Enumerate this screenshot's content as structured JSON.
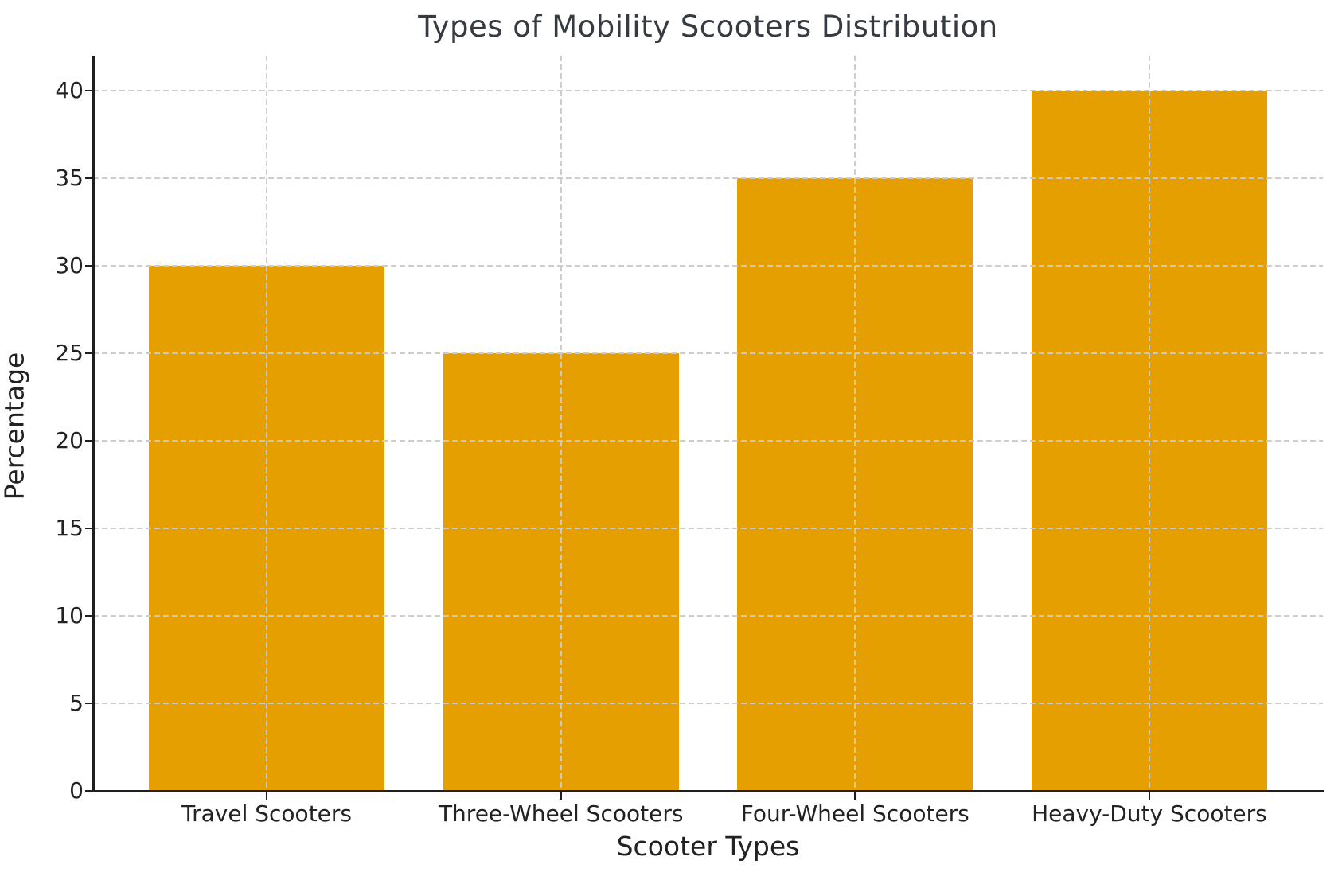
{
  "chart_data": {
    "type": "bar",
    "title": "Types of Mobility Scooters Distribution",
    "xlabel": "Scooter Types",
    "ylabel": "Percentage",
    "categories": [
      "Travel Scooters",
      "Three-Wheel Scooters",
      "Four-Wheel Scooters",
      "Heavy-Duty Scooters"
    ],
    "values": [
      30,
      25,
      35,
      40
    ],
    "ylim": [
      0,
      42
    ],
    "yticks": [
      0,
      5,
      10,
      15,
      20,
      25,
      30,
      35,
      40
    ],
    "bar_color": "#E69F00",
    "axis_color": "#1f1f1f",
    "grid": {
      "visible": true,
      "style": "dashed",
      "color": "#cccccc",
      "axes": "both",
      "drawn_over_bars": true
    },
    "legend": "none",
    "spines": "left and bottom only"
  }
}
